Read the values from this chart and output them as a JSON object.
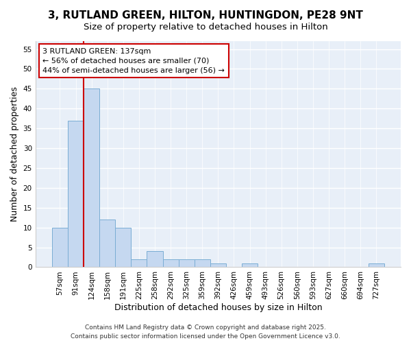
{
  "title_line1": "3, RUTLAND GREEN, HILTON, HUNTINGDON, PE28 9NT",
  "title_line2": "Size of property relative to detached houses in Hilton",
  "xlabel": "Distribution of detached houses by size in Hilton",
  "ylabel": "Number of detached properties",
  "categories": [
    "57sqm",
    "91sqm",
    "124sqm",
    "158sqm",
    "191sqm",
    "225sqm",
    "258sqm",
    "292sqm",
    "325sqm",
    "359sqm",
    "392sqm",
    "426sqm",
    "459sqm",
    "493sqm",
    "526sqm",
    "560sqm",
    "593sqm",
    "627sqm",
    "660sqm",
    "694sqm",
    "727sqm"
  ],
  "values": [
    10,
    37,
    45,
    12,
    10,
    2,
    4,
    2,
    2,
    2,
    1,
    0,
    1,
    0,
    0,
    0,
    0,
    0,
    0,
    0,
    1
  ],
  "bar_color": "#c5d8f0",
  "bar_edge_color": "#7aadd4",
  "red_line_x": 2.0,
  "red_line_color": "#cc0000",
  "annotation_text": "3 RUTLAND GREEN: 137sqm\n← 56% of detached houses are smaller (70)\n44% of semi-detached houses are larger (56) →",
  "annotation_box_color": "#ffffff",
  "annotation_box_edge_color": "#cc0000",
  "ylim": [
    0,
    57
  ],
  "yticks": [
    0,
    5,
    10,
    15,
    20,
    25,
    30,
    35,
    40,
    45,
    50,
    55
  ],
  "background_color": "#e8eff8",
  "grid_color": "#ffffff",
  "footer_text": "Contains HM Land Registry data © Crown copyright and database right 2025.\nContains public sector information licensed under the Open Government Licence v3.0.",
  "title_fontsize": 11,
  "subtitle_fontsize": 9.5,
  "axis_label_fontsize": 9,
  "tick_fontsize": 7.5,
  "annotation_fontsize": 8,
  "footer_fontsize": 6.5
}
